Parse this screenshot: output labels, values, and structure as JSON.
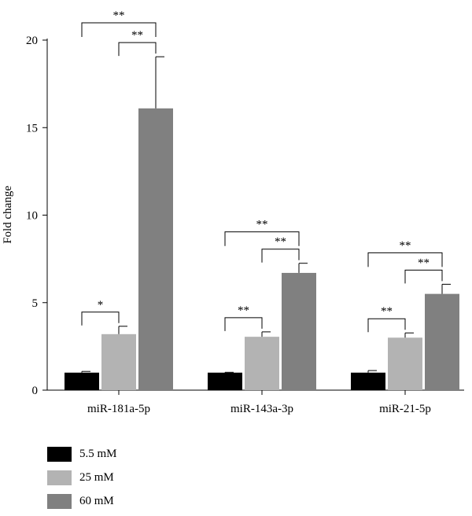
{
  "chart_data": {
    "type": "bar",
    "categories": [
      "miR-181a-5p",
      "miR-143a-3p",
      "miR-21-5p"
    ],
    "series": [
      {
        "name": "5.5 mM",
        "color": "#000000",
        "values": [
          1.0,
          1.0,
          1.0
        ],
        "errors": [
          0.07,
          0.02,
          0.12
        ]
      },
      {
        "name": "25 mM",
        "color": "#b3b3b3",
        "values": [
          3.2,
          3.05,
          3.0
        ],
        "errors": [
          0.45,
          0.28,
          0.27
        ]
      },
      {
        "name": "60 mM",
        "color": "#808080",
        "values": [
          16.1,
          6.7,
          5.5
        ],
        "errors": [
          2.95,
          0.55,
          0.55
        ]
      }
    ],
    "ylabel": "Fold change",
    "xlabel": "",
    "ylim": [
      0,
      20
    ],
    "yticks": [
      "0",
      "5",
      "10",
      "15",
      "20"
    ],
    "significance": [
      {
        "category": 0,
        "from": 0,
        "to": 1,
        "label": "*"
      },
      {
        "category": 0,
        "from": 1,
        "to": 2,
        "label": "**"
      },
      {
        "category": 0,
        "from": 0,
        "to": 2,
        "label": "**"
      },
      {
        "category": 1,
        "from": 0,
        "to": 1,
        "label": "**"
      },
      {
        "category": 1,
        "from": 1,
        "to": 2,
        "label": "**"
      },
      {
        "category": 1,
        "from": 0,
        "to": 2,
        "label": "**"
      },
      {
        "category": 2,
        "from": 0,
        "to": 1,
        "label": "**"
      },
      {
        "category": 2,
        "from": 1,
        "to": 2,
        "label": "**"
      },
      {
        "category": 2,
        "from": 0,
        "to": 2,
        "label": "**"
      }
    ],
    "grid": false,
    "legend_position": "bottom-left"
  }
}
